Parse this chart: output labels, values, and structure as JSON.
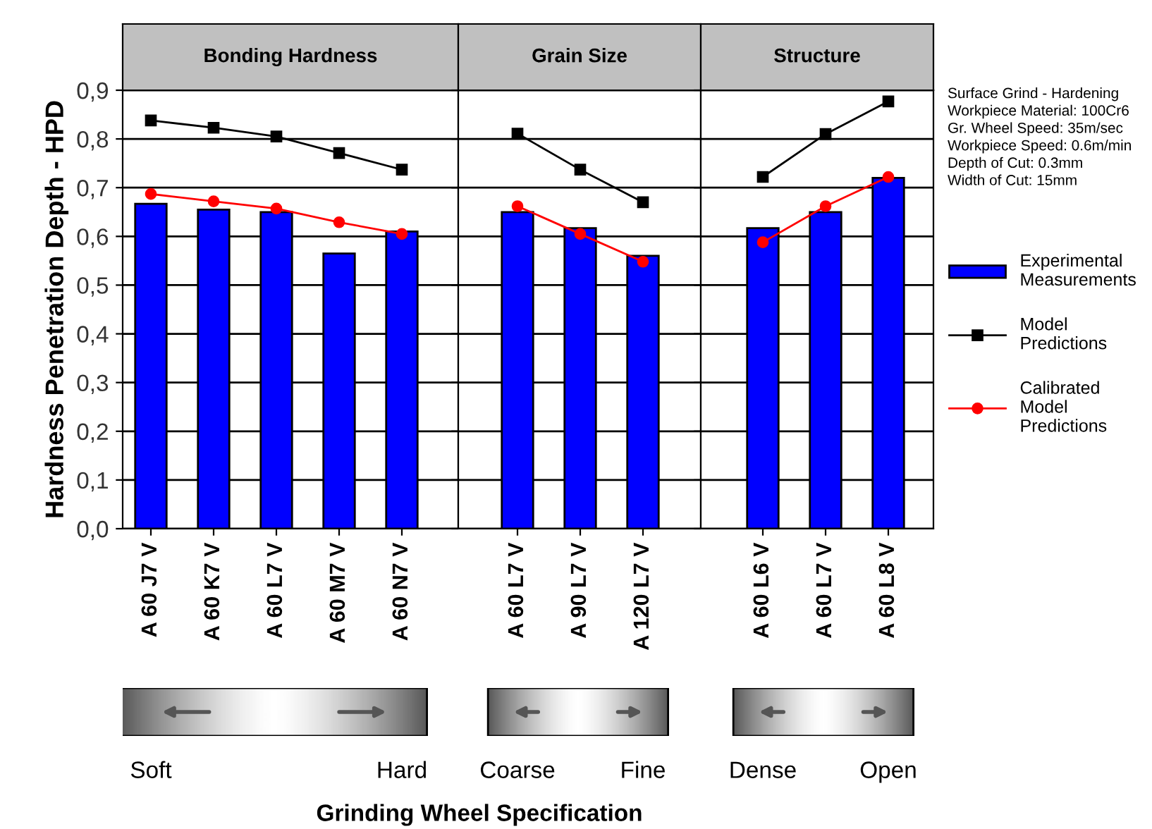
{
  "chart_data": [
    {
      "type": "bar",
      "title": "Bonding Hardness",
      "ylabel": "Hardness Penetration Depth - HPD",
      "categories": [
        "A 60 J7 V",
        "A 60 K7 V",
        "A 60 L7 V",
        "A 60 M7 V",
        "A 60 N7 V"
      ],
      "series": [
        {
          "color": "#0000ff",
          "values": [
            0.667,
            0.655,
            0.65,
            0.565,
            0.61
          ]
        },
        {
          "type": "line",
          "color": "#000000",
          "marker": "square",
          "values": [
            0.838,
            0.823,
            0.805,
            0.771,
            0.737
          ]
        },
        {
          "type": "line",
          "color": "#ff0000",
          "marker": "circle",
          "values": [
            0.687,
            0.672,
            0.657,
            0.629,
            0.605
          ]
        }
      ],
      "ylim": [
        0,
        0.9
      ],
      "yticks": [
        {
          "value": 0,
          "label": "0,0"
        },
        {
          "value": 0.1,
          "label": "0,1"
        },
        {
          "value": 0.2,
          "label": "0,2"
        },
        {
          "value": 0.3,
          "label": "0,3"
        },
        {
          "value": 0.4,
          "label": "0,4"
        },
        {
          "value": 0.5,
          "label": "0,5"
        },
        {
          "value": 0.6,
          "label": "0,6"
        },
        {
          "value": 0.7,
          "label": "0,7"
        },
        {
          "value": 0.8,
          "label": "0,8"
        },
        {
          "value": 0.9,
          "label": "0,9"
        }
      ],
      "grid": "y",
      "annotations": [
        "Soft",
        "Hard"
      ]
    },
    {
      "type": "bar",
      "title": "Grain Size",
      "categories": [
        "A 60 L7 V",
        "A 90 L7 V",
        "A 120 L7 V"
      ],
      "series": [
        {
          "color": "#0000ff",
          "values": [
            0.65,
            0.617,
            0.56
          ]
        },
        {
          "type": "line",
          "color": "#000000",
          "marker": "square",
          "values": [
            0.811,
            0.737,
            0.67
          ]
        },
        {
          "type": "line",
          "color": "#ff0000",
          "marker": "circle",
          "values": [
            0.662,
            0.605,
            0.548
          ]
        }
      ],
      "ylim": [
        0,
        0.9
      ],
      "yticks": [
        0,
        0.1,
        0.2,
        0.3,
        0.4,
        0.5,
        0.6,
        0.7,
        0.8,
        0.9
      ],
      "tick_labels": "x",
      "grid": "y",
      "annotations": [
        "Coarse",
        "Fine",
        "Grinding Wheel Specification"
      ]
    },
    {
      "type": "bar",
      "title": "Structure",
      "categories": [
        "A 60 L6 V",
        "A 60 L7 V",
        "A 60 L8 V"
      ],
      "series": [
        {
          "name": "Experimental\nMeasurements",
          "color": "#0000ff",
          "values": [
            0.617,
            0.65,
            0.72
          ]
        },
        {
          "name": "Model\nPredictions",
          "type": "line",
          "color": "#000000",
          "marker": "square",
          "values": [
            0.722,
            0.81,
            0.877
          ]
        },
        {
          "name": "Calibrated\nModel\nPredictions",
          "type": "line",
          "color": "#ff0000",
          "marker": "circle",
          "values": [
            0.588,
            0.662,
            0.722
          ]
        }
      ],
      "ylim": [
        0,
        0.9
      ],
      "yticks": [
        0,
        0.1,
        0.2,
        0.3,
        0.4,
        0.5,
        0.6,
        0.7,
        0.8,
        0.9
      ],
      "tick_labels": "x",
      "grid": "y",
      "legend": "right",
      "annotations": [
        "Dense",
        "Open",
        "Surface Grind - Hardening\nWorkpiece Material: 100Cr6\nGr. Wheel Speed: 35m/sec\nWorkpiece Speed: 0.6m/min\nDepth of Cut: 0.3mm\nWidth of Cut: 15mm"
      ]
    }
  ]
}
